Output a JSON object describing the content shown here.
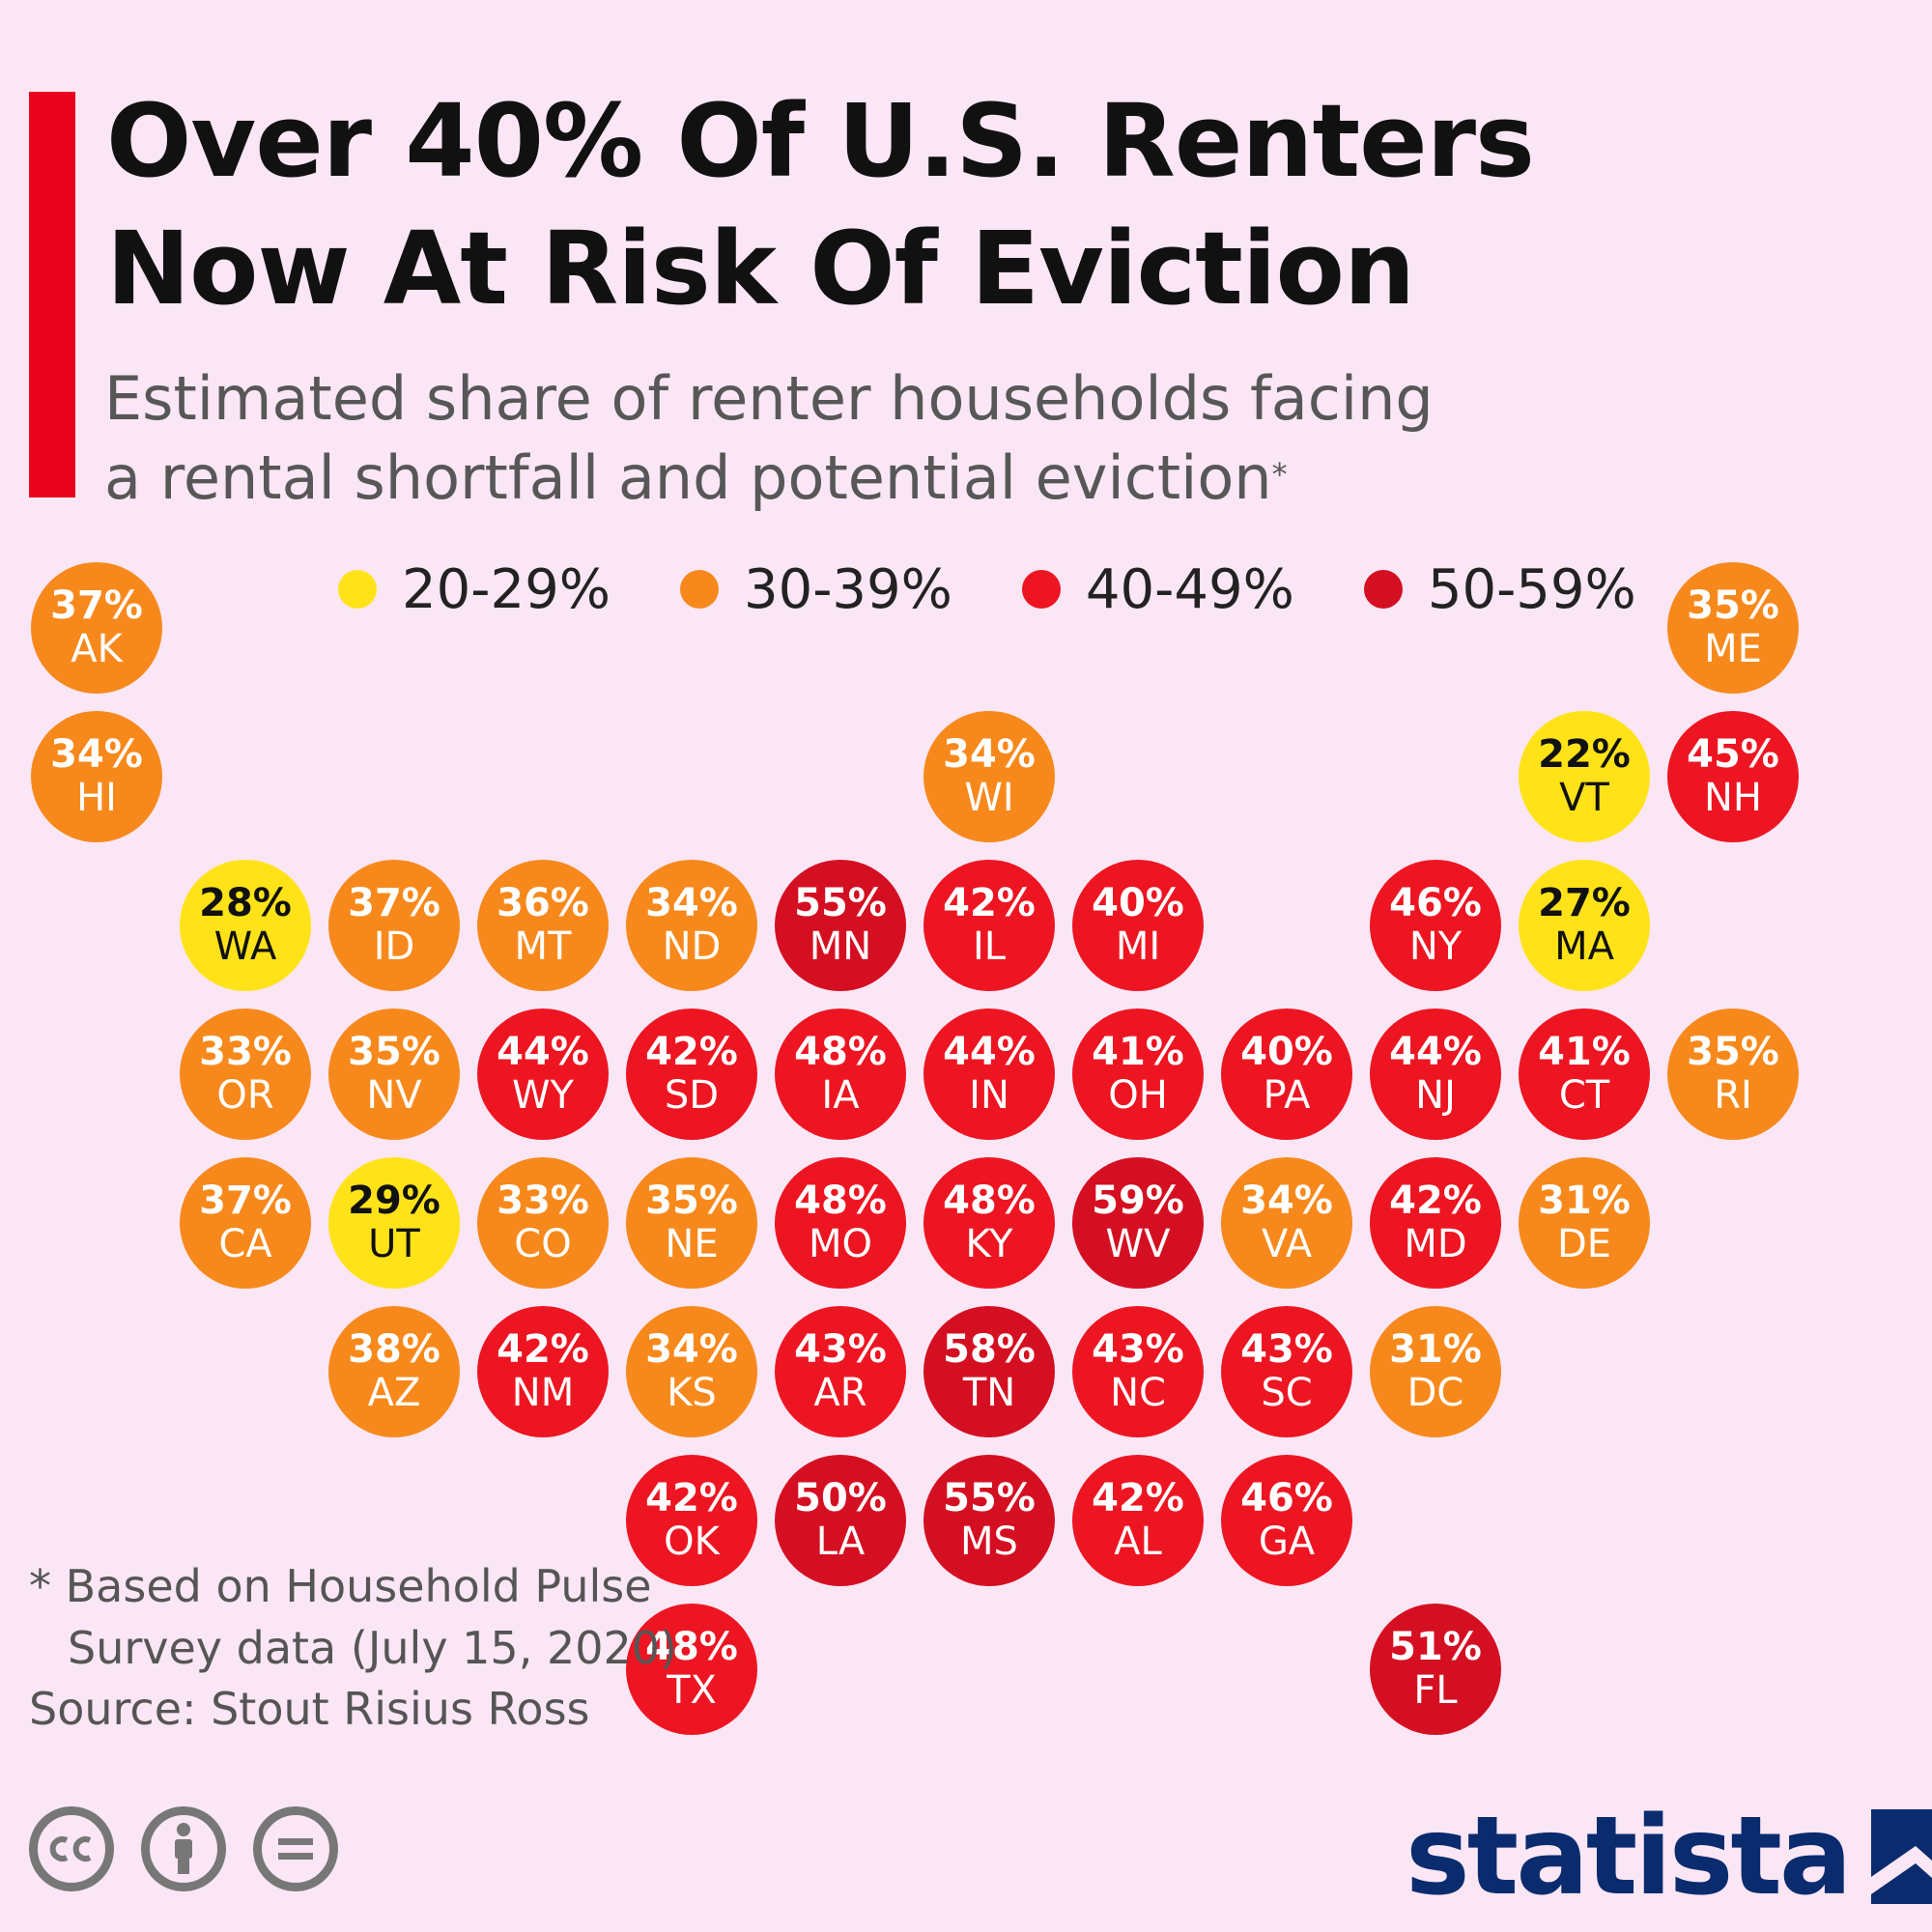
{
  "title_lines": [
    "Over 40% Of U.S. Renters",
    "Now At Risk Of Eviction"
  ],
  "subtitle_lines": [
    "Estimated share of renter households facing",
    "a rental shortfall and potential eviction"
  ],
  "subtitle_mark": "*",
  "legend": [
    {
      "label": "20-29%",
      "color": "#ffe318"
    },
    {
      "label": "30-39%",
      "color": "#f7891c"
    },
    {
      "label": "40-49%",
      "color": "#ee1522"
    },
    {
      "label": "50-59%",
      "color": "#d50f22"
    }
  ],
  "states": [
    {
      "abbr": "AK",
      "value": 37,
      "label": "37%",
      "row": 0,
      "col": 0
    },
    {
      "abbr": "ME",
      "value": 35,
      "label": "35%",
      "row": 0,
      "col": 11
    },
    {
      "abbr": "HI",
      "value": 34,
      "label": "34%",
      "row": 1,
      "col": 0
    },
    {
      "abbr": "WI",
      "value": 34,
      "label": "34%",
      "row": 1,
      "col": 6
    },
    {
      "abbr": "VT",
      "value": 22,
      "label": "22%",
      "row": 1,
      "col": 10
    },
    {
      "abbr": "NH",
      "value": 45,
      "label": "45%",
      "row": 1,
      "col": 11
    },
    {
      "abbr": "WA",
      "value": 28,
      "label": "28%",
      "row": 2,
      "col": 1
    },
    {
      "abbr": "ID",
      "value": 37,
      "label": "37%",
      "row": 2,
      "col": 2
    },
    {
      "abbr": "MT",
      "value": 36,
      "label": "36%",
      "row": 2,
      "col": 3
    },
    {
      "abbr": "ND",
      "value": 34,
      "label": "34%",
      "row": 2,
      "col": 4
    },
    {
      "abbr": "MN",
      "value": 55,
      "label": "55%",
      "row": 2,
      "col": 5
    },
    {
      "abbr": "IL",
      "value": 42,
      "label": "42%",
      "row": 2,
      "col": 6
    },
    {
      "abbr": "MI",
      "value": 40,
      "label": "40%",
      "row": 2,
      "col": 7
    },
    {
      "abbr": "NY",
      "value": 46,
      "label": "46%",
      "row": 2,
      "col": 9
    },
    {
      "abbr": "MA",
      "value": 27,
      "label": "27%",
      "row": 2,
      "col": 10
    },
    {
      "abbr": "OR",
      "value": 33,
      "label": "33%",
      "row": 3,
      "col": 1
    },
    {
      "abbr": "NV",
      "value": 35,
      "label": "35%",
      "row": 3,
      "col": 2
    },
    {
      "abbr": "WY",
      "value": 44,
      "label": "44%",
      "row": 3,
      "col": 3
    },
    {
      "abbr": "SD",
      "value": 42,
      "label": "42%",
      "row": 3,
      "col": 4
    },
    {
      "abbr": "IA",
      "value": 48,
      "label": "48%",
      "row": 3,
      "col": 5
    },
    {
      "abbr": "IN",
      "value": 44,
      "label": "44%",
      "row": 3,
      "col": 6
    },
    {
      "abbr": "OH",
      "value": 41,
      "label": "41%",
      "row": 3,
      "col": 7
    },
    {
      "abbr": "PA",
      "value": 40,
      "label": "40%",
      "row": 3,
      "col": 8
    },
    {
      "abbr": "NJ",
      "value": 44,
      "label": "44%",
      "row": 3,
      "col": 9
    },
    {
      "abbr": "CT",
      "value": 41,
      "label": "41%",
      "row": 3,
      "col": 10
    },
    {
      "abbr": "RI",
      "value": 35,
      "label": "35%",
      "row": 3,
      "col": 11
    },
    {
      "abbr": "CA",
      "value": 37,
      "label": "37%",
      "row": 4,
      "col": 1
    },
    {
      "abbr": "UT",
      "value": 29,
      "label": "29%",
      "row": 4,
      "col": 2
    },
    {
      "abbr": "CO",
      "value": 33,
      "label": "33%",
      "row": 4,
      "col": 3
    },
    {
      "abbr": "NE",
      "value": 35,
      "label": "35%",
      "row": 4,
      "col": 4
    },
    {
      "abbr": "MO",
      "value": 48,
      "label": "48%",
      "row": 4,
      "col": 5
    },
    {
      "abbr": "KY",
      "value": 48,
      "label": "48%",
      "row": 4,
      "col": 6
    },
    {
      "abbr": "WV",
      "value": 59,
      "label": "59%",
      "row": 4,
      "col": 7
    },
    {
      "abbr": "VA",
      "value": 34,
      "label": "34%",
      "row": 4,
      "col": 8
    },
    {
      "abbr": "MD",
      "value": 42,
      "label": "42%",
      "row": 4,
      "col": 9
    },
    {
      "abbr": "DE",
      "value": 31,
      "label": "31%",
      "row": 4,
      "col": 10
    },
    {
      "abbr": "AZ",
      "value": 38,
      "label": "38%",
      "row": 5,
      "col": 2
    },
    {
      "abbr": "NM",
      "value": 42,
      "label": "42%",
      "row": 5,
      "col": 3
    },
    {
      "abbr": "KS",
      "value": 34,
      "label": "34%",
      "row": 5,
      "col": 4
    },
    {
      "abbr": "AR",
      "value": 43,
      "label": "43%",
      "row": 5,
      "col": 5
    },
    {
      "abbr": "TN",
      "value": 58,
      "label": "58%",
      "row": 5,
      "col": 6
    },
    {
      "abbr": "NC",
      "value": 43,
      "label": "43%",
      "row": 5,
      "col": 7
    },
    {
      "abbr": "SC",
      "value": 43,
      "label": "43%",
      "row": 5,
      "col": 8
    },
    {
      "abbr": "DC",
      "value": 31,
      "label": "31%",
      "row": 5,
      "col": 9
    },
    {
      "abbr": "OK",
      "value": 42,
      "label": "42%",
      "row": 6,
      "col": 4
    },
    {
      "abbr": "LA",
      "value": 50,
      "label": "50%",
      "row": 6,
      "col": 5
    },
    {
      "abbr": "MS",
      "value": 55,
      "label": "55%",
      "row": 6,
      "col": 6
    },
    {
      "abbr": "AL",
      "value": 42,
      "label": "42%",
      "row": 6,
      "col": 7
    },
    {
      "abbr": "GA",
      "value": 46,
      "label": "46%",
      "row": 6,
      "col": 8
    },
    {
      "abbr": "TX",
      "value": 48,
      "label": "48%",
      "row": 7,
      "col": 4
    },
    {
      "abbr": "FL",
      "value": 51,
      "label": "51%",
      "row": 7,
      "col": 9
    }
  ],
  "footnote_lines": [
    "* Based on Household Pulse",
    "Survey data (July 15, 2020)"
  ],
  "source": "Source: Stout Risius Ross",
  "license_icons": [
    "cc-icon",
    "attribution-icon",
    "no-derivatives-icon"
  ],
  "brand": "statista",
  "brand_color": "#0a2c6e",
  "background_color": "#fbe6f5",
  "accent_color": "#e8001c"
}
